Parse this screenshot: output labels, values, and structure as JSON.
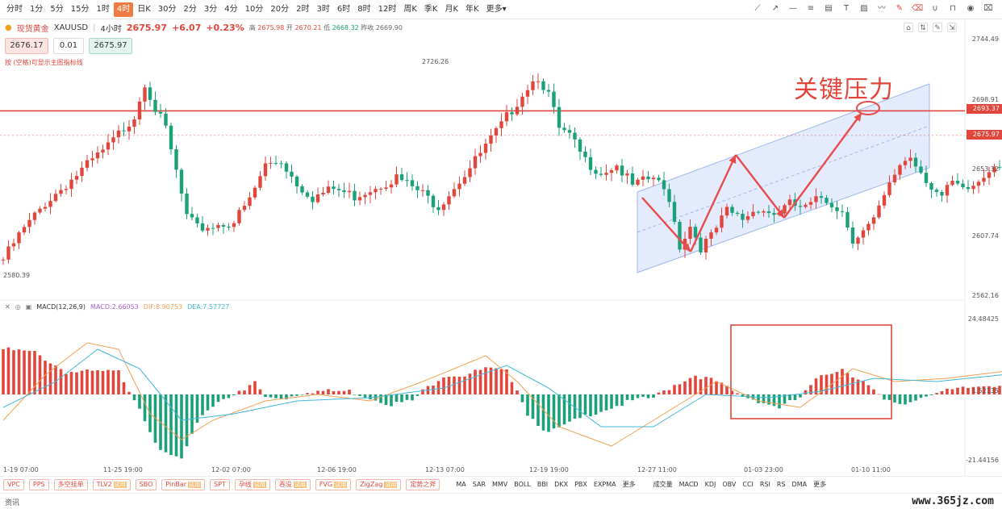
{
  "toolbar": {
    "timeframes": [
      "分时",
      "1分",
      "5分",
      "15分",
      "1时",
      "4时",
      "日K",
      "30分",
      "2分",
      "3分",
      "4分",
      "10分",
      "20分",
      "2时",
      "3时",
      "6时",
      "8时",
      "12时",
      "周K",
      "季K",
      "月K",
      "年K",
      "更多"
    ],
    "active": "4时",
    "tools": [
      "line-icon",
      "ray-icon",
      "hline-icon",
      "channel-icon",
      "fib-icon",
      "text-icon",
      "image-icon",
      "wave-icon",
      "draw-icon",
      "eraser-icon",
      "magnet-icon",
      "lock-icon",
      "eye-icon",
      "trash-icon"
    ]
  },
  "quote": {
    "name": "现货黄金",
    "symbol": "XAUUSD",
    "interval": "4小时",
    "price": "2675.97",
    "change": "+6.07",
    "pct": "+0.23%",
    "high_label": "高",
    "high": "2675.98",
    "open_label": "开",
    "open": "2670.21",
    "low_label": "低",
    "low": "2668.32",
    "prev_label": "昨收",
    "prev": "2669.90"
  },
  "order": {
    "sell": "2676.17",
    "qty": "0.01",
    "buy": "2675.97"
  },
  "hint": "按 (空格)可显示主图指标线",
  "annotation": "关键压力",
  "price_axis": {
    "labels": [
      "2744.49",
      "2698.91",
      "2653.32",
      "2607.74",
      "2562.16"
    ],
    "resistance_tag": "2693.37",
    "last_tag": "2675.97",
    "low_label": "2580.39",
    "high_label": "2726.26"
  },
  "macd": {
    "title": "MACD(12,26,9)",
    "macd": "MACD:2.66053",
    "dif": "DIF:8.90753",
    "dea": "DEA:7.57727",
    "axis": [
      "24.48425",
      "1.52135",
      "-21.44156"
    ]
  },
  "x_labels": [
    "1-19 07:00",
    "11-25 19:00",
    "12-02 07:00",
    "12-06 19:00",
    "12-13 07:00",
    "12-19 19:00",
    "12-27 11:00",
    "01-03 23:00",
    "01-10 11:00"
  ],
  "indicators": {
    "buttons": [
      {
        "label": "VPC",
        "tag": ""
      },
      {
        "label": "PPS",
        "tag": ""
      },
      {
        "label": "多空挂单",
        "tag": ""
      },
      {
        "label": "TLV2",
        "tag": "试用"
      },
      {
        "label": "SBO",
        "tag": ""
      },
      {
        "label": "PinBar",
        "tag": "试用"
      },
      {
        "label": "SPT",
        "tag": ""
      },
      {
        "label": "孕线",
        "tag": "试用"
      },
      {
        "label": "吞没",
        "tag": "试用"
      },
      {
        "label": "FVG",
        "tag": "试用"
      },
      {
        "label": "ZigZag",
        "tag": "试用"
      },
      {
        "label": "定势之斧",
        "tag": ""
      }
    ],
    "main": [
      "MA",
      "SAR",
      "MMV",
      "BOLL",
      "BBI",
      "DKX",
      "PBX",
      "EXPMA",
      "更多"
    ],
    "sub": [
      "成交量",
      "MACD",
      "KDJ",
      "OBV",
      "CCI",
      "RSI",
      "RS",
      "DMA",
      "更多"
    ]
  },
  "news": "资讯",
  "watermark": "www.365jz.com",
  "colors": {
    "up": "#e0463c",
    "down": "#1aa179",
    "dif": "#f0a050",
    "dea": "#40b8d8",
    "channel": "#c8d6f5"
  },
  "chart_data": {
    "type": "candlestick",
    "interval": "4H",
    "ylim": [
      2562.16,
      2744.49
    ],
    "resistance": 2693.37,
    "last": 2675.97,
    "anchors": [
      [
        0,
        2588
      ],
      [
        3,
        2605
      ],
      [
        8,
        2628
      ],
      [
        14,
        2648
      ],
      [
        20,
        2668
      ],
      [
        25,
        2690
      ],
      [
        27,
        2714
      ],
      [
        29,
        2695
      ],
      [
        31,
        2680
      ],
      [
        33,
        2650
      ],
      [
        35,
        2618
      ],
      [
        37,
        2610
      ],
      [
        40,
        2612
      ],
      [
        44,
        2615
      ],
      [
        47,
        2630
      ],
      [
        50,
        2655
      ],
      [
        53,
        2658
      ],
      [
        56,
        2642
      ],
      [
        59,
        2632
      ],
      [
        63,
        2638
      ],
      [
        67,
        2633
      ],
      [
        71,
        2640
      ],
      [
        75,
        2646
      ],
      [
        79,
        2637
      ],
      [
        83,
        2626
      ],
      [
        86,
        2640
      ],
      [
        89,
        2653
      ],
      [
        92,
        2668
      ],
      [
        95,
        2683
      ],
      [
        98,
        2700
      ],
      [
        100,
        2711
      ],
      [
        102,
        2718
      ],
      [
        104,
        2705
      ],
      [
        106,
        2680
      ],
      [
        108,
        2675
      ],
      [
        111,
        2658
      ],
      [
        114,
        2650
      ],
      [
        117,
        2655
      ],
      [
        120,
        2640
      ],
      [
        124,
        2646
      ],
      [
        127,
        2632
      ],
      [
        129,
        2598
      ],
      [
        131,
        2612
      ],
      [
        133,
        2597
      ],
      [
        135,
        2604
      ],
      [
        138,
        2622
      ],
      [
        141,
        2617
      ],
      [
        144,
        2625
      ],
      [
        147,
        2620
      ],
      [
        150,
        2627
      ],
      [
        153,
        2624
      ],
      [
        156,
        2632
      ],
      [
        158,
        2628
      ],
      [
        160,
        2622
      ],
      [
        162,
        2603
      ],
      [
        164,
        2608
      ],
      [
        166,
        2615
      ],
      [
        169,
        2640
      ],
      [
        171,
        2656
      ],
      [
        173,
        2661
      ],
      [
        175,
        2651
      ],
      [
        177,
        2640
      ],
      [
        179,
        2632
      ],
      [
        181,
        2642
      ],
      [
        183,
        2636
      ],
      [
        185,
        2640
      ],
      [
        187,
        2647
      ],
      [
        189,
        2657
      ],
      [
        191,
        2652
      ],
      [
        193,
        2659
      ],
      [
        196,
        2664
      ],
      [
        198,
        2670
      ],
      [
        200,
        2674
      ],
      [
        201,
        2676
      ]
    ],
    "macd_hist": [
      [
        0,
        14
      ],
      [
        6,
        13
      ],
      [
        12,
        7
      ],
      [
        16,
        7
      ],
      [
        22,
        7
      ],
      [
        26,
        -4
      ],
      [
        30,
        -18
      ],
      [
        34,
        -20
      ],
      [
        38,
        -6
      ],
      [
        42,
        -1
      ],
      [
        46,
        1
      ],
      [
        48,
        4
      ],
      [
        50,
        -1
      ],
      [
        54,
        -1
      ],
      [
        58,
        1
      ],
      [
        62,
        1
      ],
      [
        66,
        1
      ],
      [
        70,
        -1
      ],
      [
        74,
        -3
      ],
      [
        78,
        -2
      ],
      [
        80,
        1
      ],
      [
        84,
        6
      ],
      [
        88,
        6
      ],
      [
        92,
        8
      ],
      [
        96,
        7
      ],
      [
        98,
        2
      ],
      [
        100,
        -6
      ],
      [
        104,
        -12
      ],
      [
        108,
        -9
      ],
      [
        112,
        -6
      ],
      [
        116,
        -4
      ],
      [
        120,
        -2
      ],
      [
        124,
        -1
      ],
      [
        128,
        3
      ],
      [
        132,
        6
      ],
      [
        136,
        4
      ],
      [
        140,
        0
      ],
      [
        144,
        -2
      ],
      [
        148,
        -4
      ],
      [
        152,
        -1
      ],
      [
        156,
        6
      ],
      [
        160,
        8
      ],
      [
        164,
        4
      ],
      [
        168,
        -2
      ],
      [
        172,
        -3
      ],
      [
        176,
        0
      ],
      [
        180,
        1
      ],
      [
        184,
        2
      ],
      [
        188,
        3
      ],
      [
        192,
        3
      ],
      [
        196,
        2
      ],
      [
        201,
        2
      ]
    ],
    "macd_dif": [
      [
        0,
        -8
      ],
      [
        8,
        6
      ],
      [
        16,
        16
      ],
      [
        22,
        14
      ],
      [
        28,
        -6
      ],
      [
        34,
        -14
      ],
      [
        40,
        -8
      ],
      [
        50,
        -2
      ],
      [
        60,
        0
      ],
      [
        70,
        -2
      ],
      [
        80,
        4
      ],
      [
        92,
        12
      ],
      [
        98,
        4
      ],
      [
        106,
        -10
      ],
      [
        116,
        -16
      ],
      [
        126,
        -6
      ],
      [
        136,
        4
      ],
      [
        144,
        -2
      ],
      [
        152,
        -4
      ],
      [
        162,
        8
      ],
      [
        170,
        4
      ],
      [
        180,
        5
      ],
      [
        190,
        7
      ],
      [
        201,
        9
      ]
    ],
    "macd_dea": [
      [
        0,
        -4
      ],
      [
        10,
        4
      ],
      [
        18,
        14
      ],
      [
        26,
        8
      ],
      [
        34,
        -8
      ],
      [
        44,
        -6
      ],
      [
        56,
        -2
      ],
      [
        70,
        -1
      ],
      [
        84,
        2
      ],
      [
        96,
        9
      ],
      [
        104,
        2
      ],
      [
        114,
        -10
      ],
      [
        124,
        -10
      ],
      [
        134,
        0
      ],
      [
        146,
        -1
      ],
      [
        156,
        1
      ],
      [
        166,
        5
      ],
      [
        178,
        4
      ],
      [
        190,
        6
      ],
      [
        201,
        7.6
      ]
    ]
  }
}
